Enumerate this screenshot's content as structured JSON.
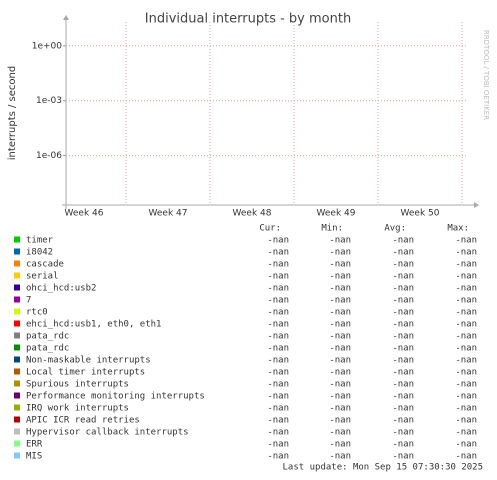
{
  "chart_data": {
    "type": "line",
    "title": "Individual interrupts - by month",
    "y_label": "interrupts / second",
    "side_text": "RRDTOOL / TOBI OETIKER",
    "categories": [
      "Week 46",
      "Week 47",
      "Week 48",
      "Week 49",
      "Week 50"
    ],
    "log_scale": true,
    "grid": true,
    "ylim": [
      2e-09,
      20
    ],
    "yticks": [
      {
        "value": 1,
        "label": "1e+00"
      },
      {
        "value": 0.001,
        "label": "1e-03"
      },
      {
        "value": 1e-06,
        "label": "1e-06"
      }
    ],
    "stats_headers": [
      "Cur:",
      "Min:",
      "Avg:",
      "Max:"
    ],
    "series": [
      {
        "name": "timer",
        "color": "#00CC00",
        "stats": [
          "-nan",
          "-nan",
          "-nan",
          "-nan"
        ]
      },
      {
        "name": "i8042",
        "color": "#0066B3",
        "stats": [
          "-nan",
          "-nan",
          "-nan",
          "-nan"
        ]
      },
      {
        "name": "cascade",
        "color": "#FF8000",
        "stats": [
          "-nan",
          "-nan",
          "-nan",
          "-nan"
        ]
      },
      {
        "name": "serial",
        "color": "#FFCC00",
        "stats": [
          "-nan",
          "-nan",
          "-nan",
          "-nan"
        ]
      },
      {
        "name": "ohci_hcd:usb2",
        "color": "#330099",
        "stats": [
          "-nan",
          "-nan",
          "-nan",
          "-nan"
        ]
      },
      {
        "name": "7",
        "color": "#990099",
        "stats": [
          "-nan",
          "-nan",
          "-nan",
          "-nan"
        ]
      },
      {
        "name": "rtc0",
        "color": "#CCFF00",
        "stats": [
          "-nan",
          "-nan",
          "-nan",
          "-nan"
        ]
      },
      {
        "name": "ehci_hcd:usb1, eth0, eth1",
        "color": "#FF0000",
        "stats": [
          "-nan",
          "-nan",
          "-nan",
          "-nan"
        ]
      },
      {
        "name": "pata_rdc",
        "color": "#808080",
        "stats": [
          "-nan",
          "-nan",
          "-nan",
          "-nan"
        ]
      },
      {
        "name": "pata_rdc",
        "color": "#008F00",
        "stats": [
          "-nan",
          "-nan",
          "-nan",
          "-nan"
        ]
      },
      {
        "name": "Non-maskable interrupts",
        "color": "#00487D",
        "stats": [
          "-nan",
          "-nan",
          "-nan",
          "-nan"
        ]
      },
      {
        "name": "Local timer interrupts",
        "color": "#B35A00",
        "stats": [
          "-nan",
          "-nan",
          "-nan",
          "-nan"
        ]
      },
      {
        "name": "Spurious interrupts",
        "color": "#B38F00",
        "stats": [
          "-nan",
          "-nan",
          "-nan",
          "-nan"
        ]
      },
      {
        "name": "Performance monitoring interrupts",
        "color": "#6B006B",
        "stats": [
          "-nan",
          "-nan",
          "-nan",
          "-nan"
        ]
      },
      {
        "name": "IRQ work interrupts",
        "color": "#8FB300",
        "stats": [
          "-nan",
          "-nan",
          "-nan",
          "-nan"
        ]
      },
      {
        "name": "APIC ICR read retries",
        "color": "#B30000",
        "stats": [
          "-nan",
          "-nan",
          "-nan",
          "-nan"
        ]
      },
      {
        "name": "Hypervisor callback interrupts",
        "color": "#BEBEBE",
        "stats": [
          "-nan",
          "-nan",
          "-nan",
          "-nan"
        ]
      },
      {
        "name": "ERR",
        "color": "#80FF80",
        "stats": [
          "-nan",
          "-nan",
          "-nan",
          "-nan"
        ]
      },
      {
        "name": "MIS",
        "color": "#80C9FF",
        "stats": [
          "-nan",
          "-nan",
          "-nan",
          "-nan"
        ]
      }
    ],
    "footer": "Last update: Mon Sep 15 07:30:30 2025"
  }
}
